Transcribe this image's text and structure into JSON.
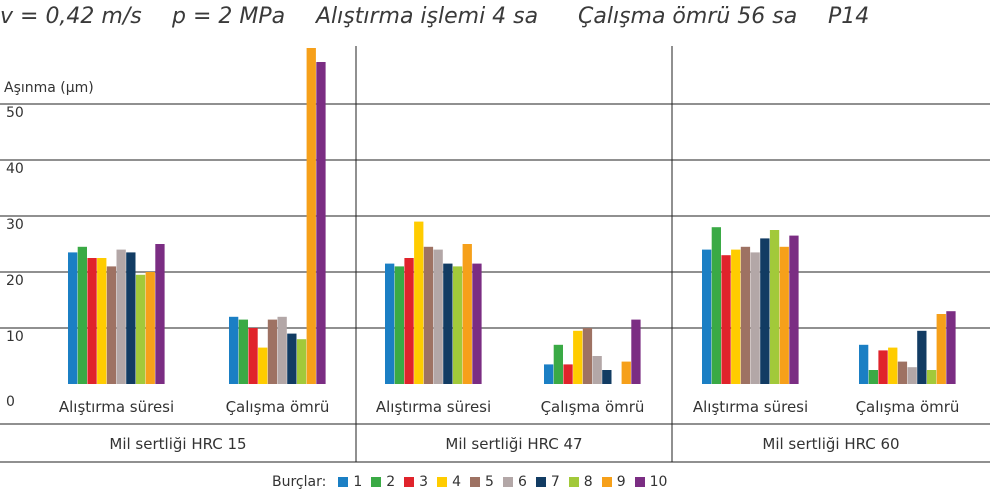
{
  "header": {
    "velocity": "v = 0,42 m/s",
    "pressure": "p = 2 MPa",
    "break_in": "Alıştırma işlemi 4 sa",
    "service": "Çalışma ömrü 56 sa",
    "material": "P14"
  },
  "chart_data": {
    "type": "bar",
    "ylabel": "Aşınma (µm)",
    "ylim": [
      0,
      60
    ],
    "yticks": [
      "0",
      "10",
      "20",
      "30",
      "40",
      "50"
    ],
    "grid": true,
    "legend_title": "Burçlar:",
    "legend_position": "bottom",
    "series_names": [
      "1",
      "2",
      "3",
      "4",
      "5",
      "6",
      "7",
      "8",
      "9",
      "10"
    ],
    "series_colors": [
      "#1b7fc4",
      "#3aaa45",
      "#e0232b",
      "#ffcc00",
      "#9e7263",
      "#b3a7a7",
      "#123c63",
      "#a2c93a",
      "#f6a01a",
      "#7b2d83"
    ],
    "groups": [
      {
        "label": "Mil sertliği HRC 15",
        "categories": [
          {
            "label": "Alıştırma süresi",
            "values": [
              23.5,
              24.5,
              22.5,
              22.5,
              21,
              24,
              23.5,
              19.5,
              20,
              25
            ]
          },
          {
            "label": "Çalışma ömrü",
            "values": [
              12,
              11.5,
              10,
              6.5,
              11.5,
              12,
              9,
              8,
              60,
              57.5
            ]
          }
        ]
      },
      {
        "label": "Mil sertliği HRC 47",
        "categories": [
          {
            "label": "Alıştırma süresi",
            "values": [
              21.5,
              21,
              22.5,
              29,
              24.5,
              24,
              21.5,
              21,
              25,
              21.5
            ]
          },
          {
            "label": "Çalışma ömrü",
            "values": [
              3.5,
              7,
              3.5,
              9.5,
              10,
              5,
              2.5,
              0,
              4,
              11.5
            ]
          }
        ]
      },
      {
        "label": "Mil sertliği HRC 60",
        "categories": [
          {
            "label": "Alıştırma süresi",
            "values": [
              24,
              28,
              23,
              24,
              24.5,
              23.5,
              26,
              27.5,
              24.5,
              26.5
            ]
          },
          {
            "label": "Çalışma ömrü",
            "values": [
              7,
              2.5,
              6,
              6.5,
              4,
              3,
              9.5,
              2.5,
              12.5,
              13
            ]
          }
        ]
      }
    ]
  }
}
